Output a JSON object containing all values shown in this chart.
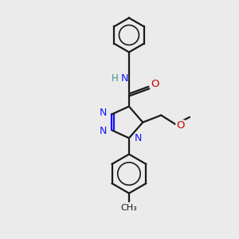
{
  "bg_color": "#ebebeb",
  "bond_color": "#1a1a1a",
  "N_color": "#1414ff",
  "O_color": "#cc0000",
  "H_color": "#4a9090",
  "lw": 1.6,
  "fs": 8.5,
  "fig_size": [
    3.0,
    3.0
  ],
  "dpi": 100,
  "xlim": [
    0,
    10
  ],
  "ylim": [
    0,
    10
  ]
}
